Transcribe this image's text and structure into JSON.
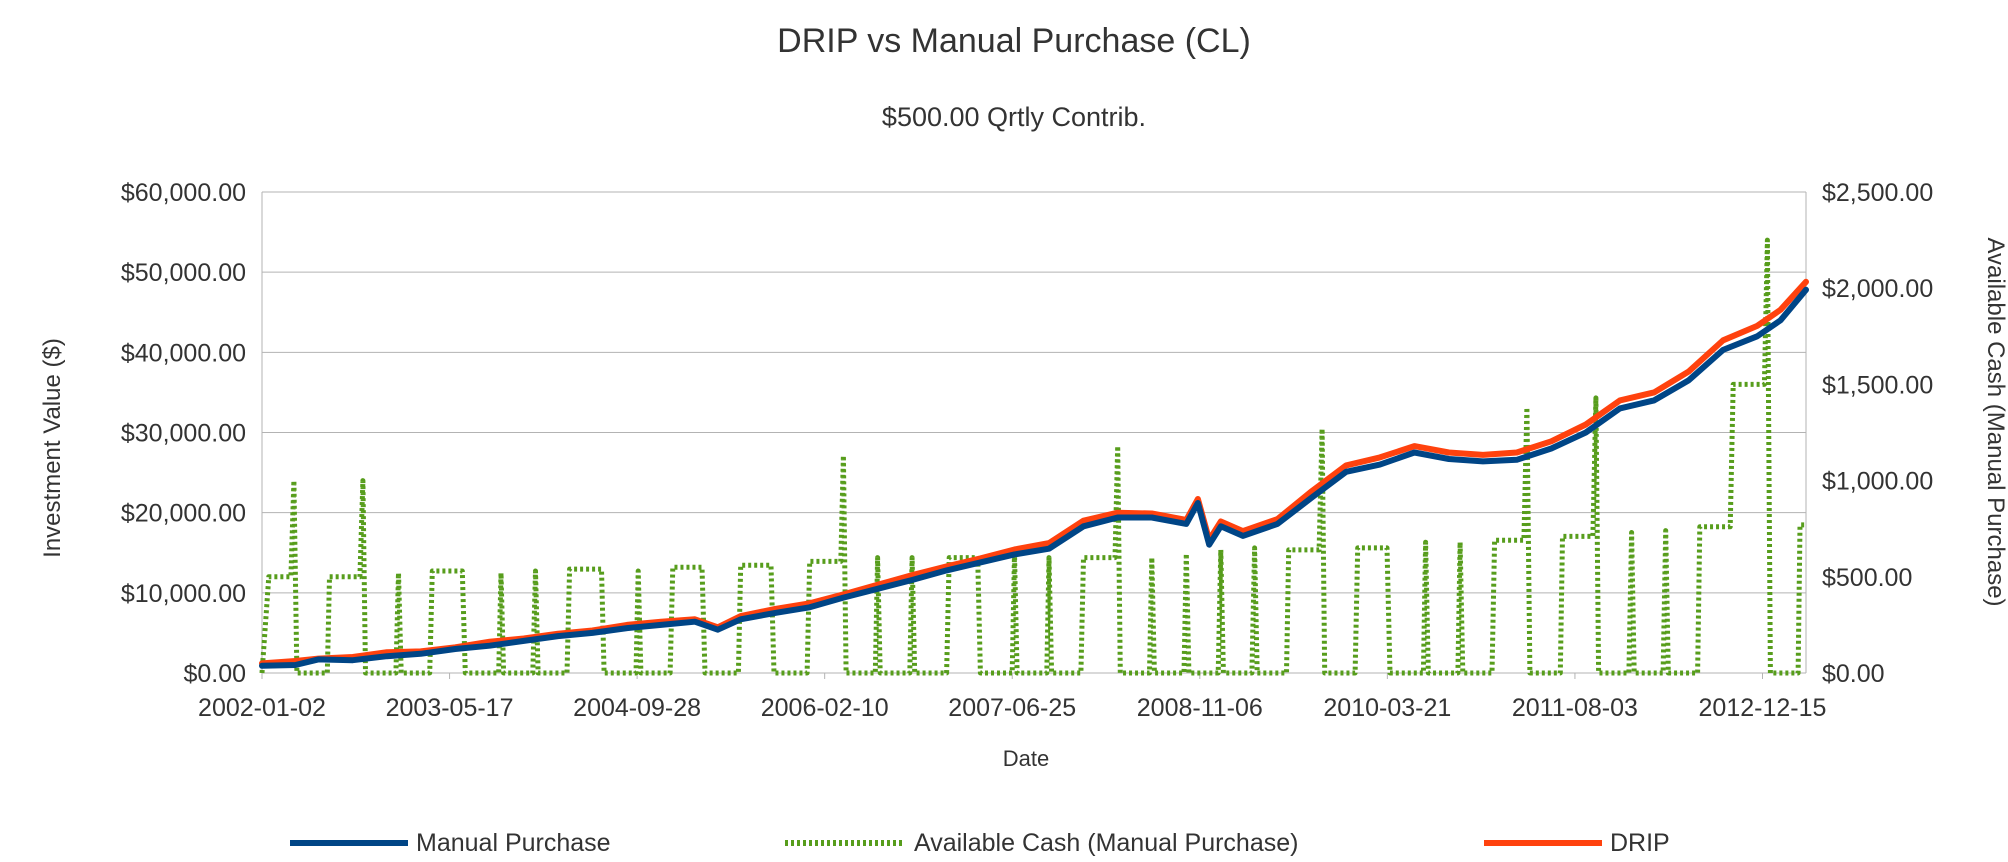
{
  "chart_data": {
    "type": "line",
    "title": "DRIP vs Manual Purchase (CL)",
    "subtitle": "$500.00 Qrtly Contrib.",
    "xlabel": "Date",
    "ylabel": "Investment Value ($)",
    "y2label": "Available Cash (Manual Purchase)",
    "x_tick_labels": [
      "2002-01-02",
      "2003-05-17",
      "2004-09-28",
      "2006-02-10",
      "2007-06-25",
      "2008-11-06",
      "2010-03-21",
      "2011-08-03",
      "2012-12-15"
    ],
    "x_range": [
      "2002-01-02",
      "2013-04-10"
    ],
    "y_ticks": [
      "$0.00",
      "$10,000.00",
      "$20,000.00",
      "$30,000.00",
      "$40,000.00",
      "$50,000.00",
      "$60,000.00"
    ],
    "y_range": [
      0,
      60000
    ],
    "y2_ticks": [
      "$0.00",
      "$500.00",
      "$1,000.00",
      "$1,500.00",
      "$2,000.00",
      "$2,500.00"
    ],
    "y2_range": [
      0,
      2500
    ],
    "grid": true,
    "legend_position": "bottom",
    "series": [
      {
        "name": "Manual Purchase",
        "axis": "left",
        "color": "#004586",
        "style": "solid",
        "points": [
          [
            "2002-01-02",
            900
          ],
          [
            "2002-04-01",
            1000
          ],
          [
            "2002-06-01",
            1700
          ],
          [
            "2002-09-01",
            1600
          ],
          [
            "2002-12-01",
            2100
          ],
          [
            "2003-03-01",
            2400
          ],
          [
            "2003-06-01",
            3000
          ],
          [
            "2003-09-01",
            3400
          ],
          [
            "2003-12-01",
            4000
          ],
          [
            "2004-03-01",
            4600
          ],
          [
            "2004-06-01",
            5000
          ],
          [
            "2004-09-01",
            5600
          ],
          [
            "2004-12-01",
            6000
          ],
          [
            "2005-03-01",
            6400
          ],
          [
            "2005-05-01",
            5400
          ],
          [
            "2005-07-01",
            6700
          ],
          [
            "2005-10-01",
            7500
          ],
          [
            "2006-01-01",
            8200
          ],
          [
            "2006-04-01",
            9400
          ],
          [
            "2006-07-01",
            10500
          ],
          [
            "2006-10-01",
            11600
          ],
          [
            "2007-01-01",
            12800
          ],
          [
            "2007-04-01",
            13800
          ],
          [
            "2007-07-01",
            14800
          ],
          [
            "2007-10-01",
            15500
          ],
          [
            "2008-01-01",
            18300
          ],
          [
            "2008-04-01",
            19400
          ],
          [
            "2008-07-01",
            19400
          ],
          [
            "2008-10-01",
            18600
          ],
          [
            "2008-11-01",
            21200
          ],
          [
            "2008-12-01",
            16000
          ],
          [
            "2009-01-01",
            18300
          ],
          [
            "2009-03-01",
            17100
          ],
          [
            "2009-06-01",
            18600
          ],
          [
            "2009-09-01",
            21900
          ],
          [
            "2009-12-01",
            25100
          ],
          [
            "2010-03-01",
            26000
          ],
          [
            "2010-06-01",
            27500
          ],
          [
            "2010-09-01",
            26700
          ],
          [
            "2010-12-01",
            26400
          ],
          [
            "2011-03-01",
            26600
          ],
          [
            "2011-06-01",
            28000
          ],
          [
            "2011-09-01",
            30000
          ],
          [
            "2011-12-01",
            33000
          ],
          [
            "2012-03-01",
            34000
          ],
          [
            "2012-06-01",
            36500
          ],
          [
            "2012-09-01",
            40300
          ],
          [
            "2012-12-01",
            42000
          ],
          [
            "2013-02-01",
            44000
          ],
          [
            "2013-04-10",
            47800
          ]
        ]
      },
      {
        "name": "Available Cash (Manual Purchase)",
        "axis": "right",
        "color": "#579d1c",
        "style": "dotted",
        "points": [
          [
            "2002-01-02",
            0
          ],
          [
            "2002-01-20",
            500
          ],
          [
            "2002-03-20",
            500
          ],
          [
            "2002-03-28",
            1000
          ],
          [
            "2002-04-05",
            0
          ],
          [
            "2002-06-25",
            0
          ],
          [
            "2002-07-01",
            500
          ],
          [
            "2002-09-20",
            500
          ],
          [
            "2002-09-28",
            1000
          ],
          [
            "2002-10-05",
            0
          ],
          [
            "2002-12-25",
            0
          ],
          [
            "2003-01-01",
            520
          ],
          [
            "2003-01-08",
            0
          ],
          [
            "2003-03-25",
            0
          ],
          [
            "2003-04-01",
            530
          ],
          [
            "2003-06-20",
            530
          ],
          [
            "2003-06-28",
            0
          ],
          [
            "2003-09-25",
            0
          ],
          [
            "2003-10-01",
            520
          ],
          [
            "2003-10-08",
            0
          ],
          [
            "2003-12-25",
            0
          ],
          [
            "2004-01-01",
            530
          ],
          [
            "2004-01-08",
            0
          ],
          [
            "2004-03-25",
            0
          ],
          [
            "2004-04-01",
            540
          ],
          [
            "2004-06-25",
            540
          ],
          [
            "2004-07-02",
            0
          ],
          [
            "2004-09-25",
            0
          ],
          [
            "2004-10-01",
            530
          ],
          [
            "2004-10-08",
            0
          ],
          [
            "2004-12-25",
            0
          ],
          [
            "2005-01-01",
            550
          ],
          [
            "2005-03-20",
            550
          ],
          [
            "2005-03-28",
            0
          ],
          [
            "2005-06-25",
            0
          ],
          [
            "2005-07-01",
            560
          ],
          [
            "2005-09-20",
            560
          ],
          [
            "2005-09-28",
            0
          ],
          [
            "2005-12-25",
            0
          ],
          [
            "2006-01-01",
            580
          ],
          [
            "2006-03-25",
            580
          ],
          [
            "2006-04-01",
            1130
          ],
          [
            "2006-04-08",
            0
          ],
          [
            "2006-06-25",
            0
          ],
          [
            "2006-07-01",
            600
          ],
          [
            "2006-07-08",
            0
          ],
          [
            "2006-09-25",
            0
          ],
          [
            "2006-10-01",
            600
          ],
          [
            "2006-10-08",
            0
          ],
          [
            "2007-01-01",
            0
          ],
          [
            "2007-01-08",
            600
          ],
          [
            "2007-03-25",
            600
          ],
          [
            "2007-04-01",
            0
          ],
          [
            "2007-06-25",
            0
          ],
          [
            "2007-07-01",
            620
          ],
          [
            "2007-07-08",
            0
          ],
          [
            "2007-09-25",
            0
          ],
          [
            "2007-10-01",
            600
          ],
          [
            "2007-10-08",
            0
          ],
          [
            "2007-12-25",
            0
          ],
          [
            "2008-01-01",
            600
          ],
          [
            "2008-03-25",
            600
          ],
          [
            "2008-04-01",
            1180
          ],
          [
            "2008-04-08",
            0
          ],
          [
            "2008-06-25",
            0
          ],
          [
            "2008-07-01",
            600
          ],
          [
            "2008-07-08",
            0
          ],
          [
            "2008-09-25",
            0
          ],
          [
            "2008-10-01",
            620
          ],
          [
            "2008-10-08",
            0
          ],
          [
            "2008-12-25",
            0
          ],
          [
            "2009-01-01",
            640
          ],
          [
            "2009-01-08",
            0
          ],
          [
            "2009-03-25",
            0
          ],
          [
            "2009-04-01",
            650
          ],
          [
            "2009-04-08",
            0
          ],
          [
            "2009-06-25",
            0
          ],
          [
            "2009-07-01",
            640
          ],
          [
            "2009-09-20",
            640
          ],
          [
            "2009-09-28",
            1270
          ],
          [
            "2009-10-05",
            0
          ],
          [
            "2009-12-25",
            0
          ],
          [
            "2010-01-01",
            650
          ],
          [
            "2010-03-20",
            650
          ],
          [
            "2010-03-28",
            0
          ],
          [
            "2010-06-25",
            0
          ],
          [
            "2010-07-01",
            680
          ],
          [
            "2010-07-08",
            0
          ],
          [
            "2010-09-25",
            0
          ],
          [
            "2010-10-01",
            680
          ],
          [
            "2010-10-08",
            0
          ],
          [
            "2010-12-25",
            0
          ],
          [
            "2011-01-01",
            690
          ],
          [
            "2011-03-20",
            690
          ],
          [
            "2011-03-28",
            1380
          ],
          [
            "2011-04-05",
            0
          ],
          [
            "2011-06-25",
            0
          ],
          [
            "2011-07-01",
            710
          ],
          [
            "2011-09-20",
            710
          ],
          [
            "2011-09-28",
            1430
          ],
          [
            "2011-10-05",
            0
          ],
          [
            "2011-12-25",
            0
          ],
          [
            "2012-01-01",
            730
          ],
          [
            "2012-01-08",
            0
          ],
          [
            "2012-03-25",
            0
          ],
          [
            "2012-04-01",
            740
          ],
          [
            "2012-04-08",
            0
          ],
          [
            "2012-06-25",
            0
          ],
          [
            "2012-07-01",
            760
          ],
          [
            "2012-09-20",
            760
          ],
          [
            "2012-09-28",
            1500
          ],
          [
            "2012-12-20",
            1500
          ],
          [
            "2012-12-28",
            2250
          ],
          [
            "2013-01-05",
            0
          ],
          [
            "2013-03-20",
            0
          ],
          [
            "2013-03-25",
            770
          ],
          [
            "2013-04-10",
            770
          ]
        ]
      },
      {
        "name": "DRIP",
        "axis": "left",
        "color": "#ff420e",
        "style": "solid",
        "points": [
          [
            "2002-01-02",
            1200
          ],
          [
            "2002-04-01",
            1500
          ],
          [
            "2002-06-01",
            1800
          ],
          [
            "2002-09-01",
            2000
          ],
          [
            "2002-12-01",
            2600
          ],
          [
            "2003-03-01",
            2700
          ],
          [
            "2003-06-01",
            3200
          ],
          [
            "2003-09-01",
            3900
          ],
          [
            "2003-12-01",
            4300
          ],
          [
            "2004-03-01",
            4900
          ],
          [
            "2004-06-01",
            5300
          ],
          [
            "2004-09-01",
            6000
          ],
          [
            "2004-12-01",
            6400
          ],
          [
            "2005-03-01",
            6700
          ],
          [
            "2005-05-01",
            5700
          ],
          [
            "2005-07-01",
            7100
          ],
          [
            "2005-10-01",
            8000
          ],
          [
            "2006-01-01",
            8700
          ],
          [
            "2006-04-01",
            9800
          ],
          [
            "2006-07-01",
            11000
          ],
          [
            "2006-10-01",
            12200
          ],
          [
            "2007-01-01",
            13300
          ],
          [
            "2007-04-01",
            14300
          ],
          [
            "2007-07-01",
            15400
          ],
          [
            "2007-10-01",
            16200
          ],
          [
            "2008-01-01",
            19000
          ],
          [
            "2008-04-01",
            20000
          ],
          [
            "2008-07-01",
            19900
          ],
          [
            "2008-10-01",
            19100
          ],
          [
            "2008-11-01",
            21700
          ],
          [
            "2008-12-01",
            16600
          ],
          [
            "2009-01-01",
            18900
          ],
          [
            "2009-03-01",
            17700
          ],
          [
            "2009-06-01",
            19200
          ],
          [
            "2009-09-01",
            22700
          ],
          [
            "2009-12-01",
            25900
          ],
          [
            "2010-03-01",
            26900
          ],
          [
            "2010-06-01",
            28300
          ],
          [
            "2010-09-01",
            27500
          ],
          [
            "2010-12-01",
            27200
          ],
          [
            "2011-03-01",
            27500
          ],
          [
            "2011-06-01",
            28900
          ],
          [
            "2011-09-01",
            31000
          ],
          [
            "2011-12-01",
            34000
          ],
          [
            "2012-03-01",
            35000
          ],
          [
            "2012-06-01",
            37600
          ],
          [
            "2012-09-01",
            41500
          ],
          [
            "2012-12-01",
            43300
          ],
          [
            "2013-02-01",
            45300
          ],
          [
            "2013-04-10",
            48800
          ]
        ]
      }
    ]
  }
}
